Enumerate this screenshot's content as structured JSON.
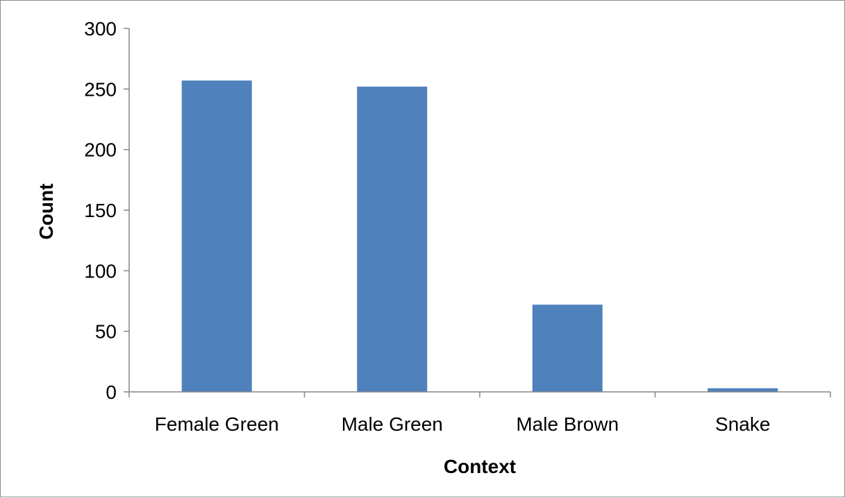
{
  "chart_data": {
    "type": "bar",
    "categories": [
      "Female Green",
      "Male Green",
      "Male Brown",
      "Snake"
    ],
    "values": [
      257,
      252,
      72,
      3
    ],
    "title": "",
    "xlabel": "Context",
    "ylabel": "Count",
    "ylim": [
      0,
      300
    ],
    "yticks": [
      0,
      50,
      100,
      150,
      200,
      250,
      300
    ],
    "grid": false,
    "legend": "none",
    "bar_color": "#4F81BD",
    "axis_color": "#868686"
  }
}
